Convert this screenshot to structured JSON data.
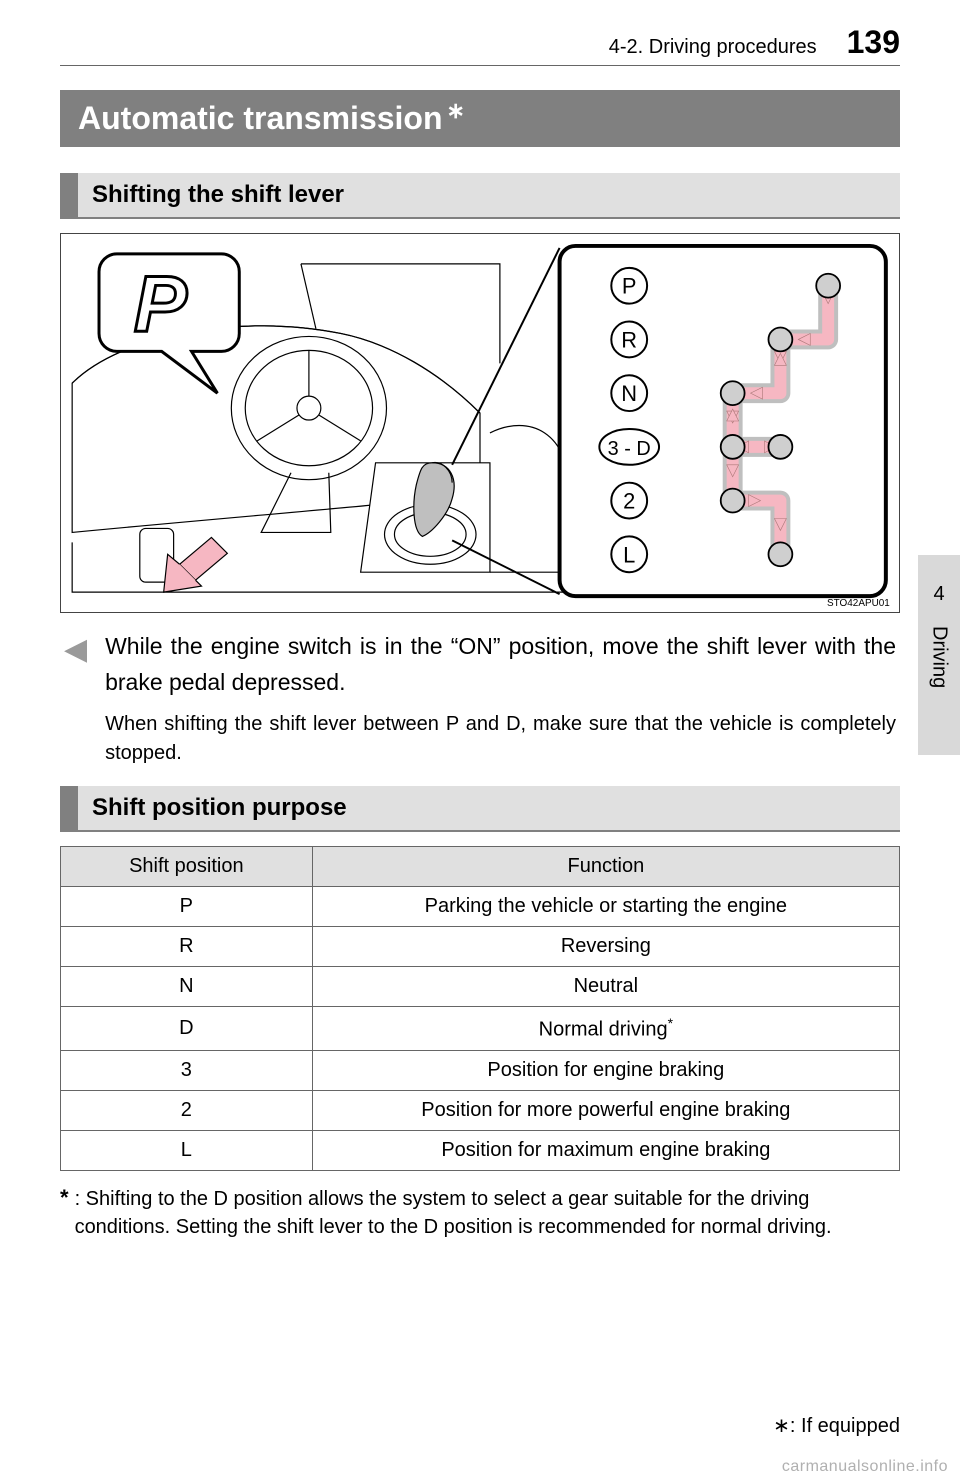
{
  "header": {
    "section_path": "4-2. Driving procedures",
    "page_number": "139"
  },
  "title": {
    "text": "Automatic transmission",
    "star": "∗"
  },
  "side_tab": {
    "number": "4",
    "label": "Driving"
  },
  "section1": {
    "heading": "Shifting the shift lever",
    "figure_code": "STO42APU01",
    "figure": {
      "speech_letter": "P",
      "gate_labels": [
        "P",
        "R",
        "N",
        "3 - D",
        "2",
        "L"
      ],
      "colors": {
        "line": "#000000",
        "pink": "#f6b7c2",
        "grey_fill": "#bfbfbf",
        "node_fill": "#cfcfcf",
        "white": "#ffffff"
      }
    },
    "main_para": "While the engine switch is in the “ON” position, move the shift lever with the brake pedal depressed.",
    "sub_para": "When shifting the shift lever between P and D, make sure that the vehicle is completely stopped."
  },
  "section2": {
    "heading": "Shift position purpose",
    "table": {
      "columns": [
        "Shift position",
        "Function"
      ],
      "rows": [
        {
          "pos": "P",
          "func": "Parking the vehicle or starting the engine",
          "star": false
        },
        {
          "pos": "R",
          "func": "Reversing",
          "star": false
        },
        {
          "pos": "N",
          "func": "Neutral",
          "star": false
        },
        {
          "pos": "D",
          "func": "Normal driving",
          "star": true
        },
        {
          "pos": "3",
          "func": "Position for engine braking",
          "star": false
        },
        {
          "pos": "2",
          "func": "Position for more powerful engine braking",
          "star": false
        },
        {
          "pos": "L",
          "func": "Position for maximum engine braking",
          "star": false
        }
      ]
    },
    "footnote_star": "*",
    "footnote": ": Shifting to the D position allows the system to select a gear suitable for the driving conditions. Setting the shift lever to the D position is recommended for normal driving."
  },
  "equipped_note": "∗: If equipped",
  "watermark": "carmanualsonline.info"
}
